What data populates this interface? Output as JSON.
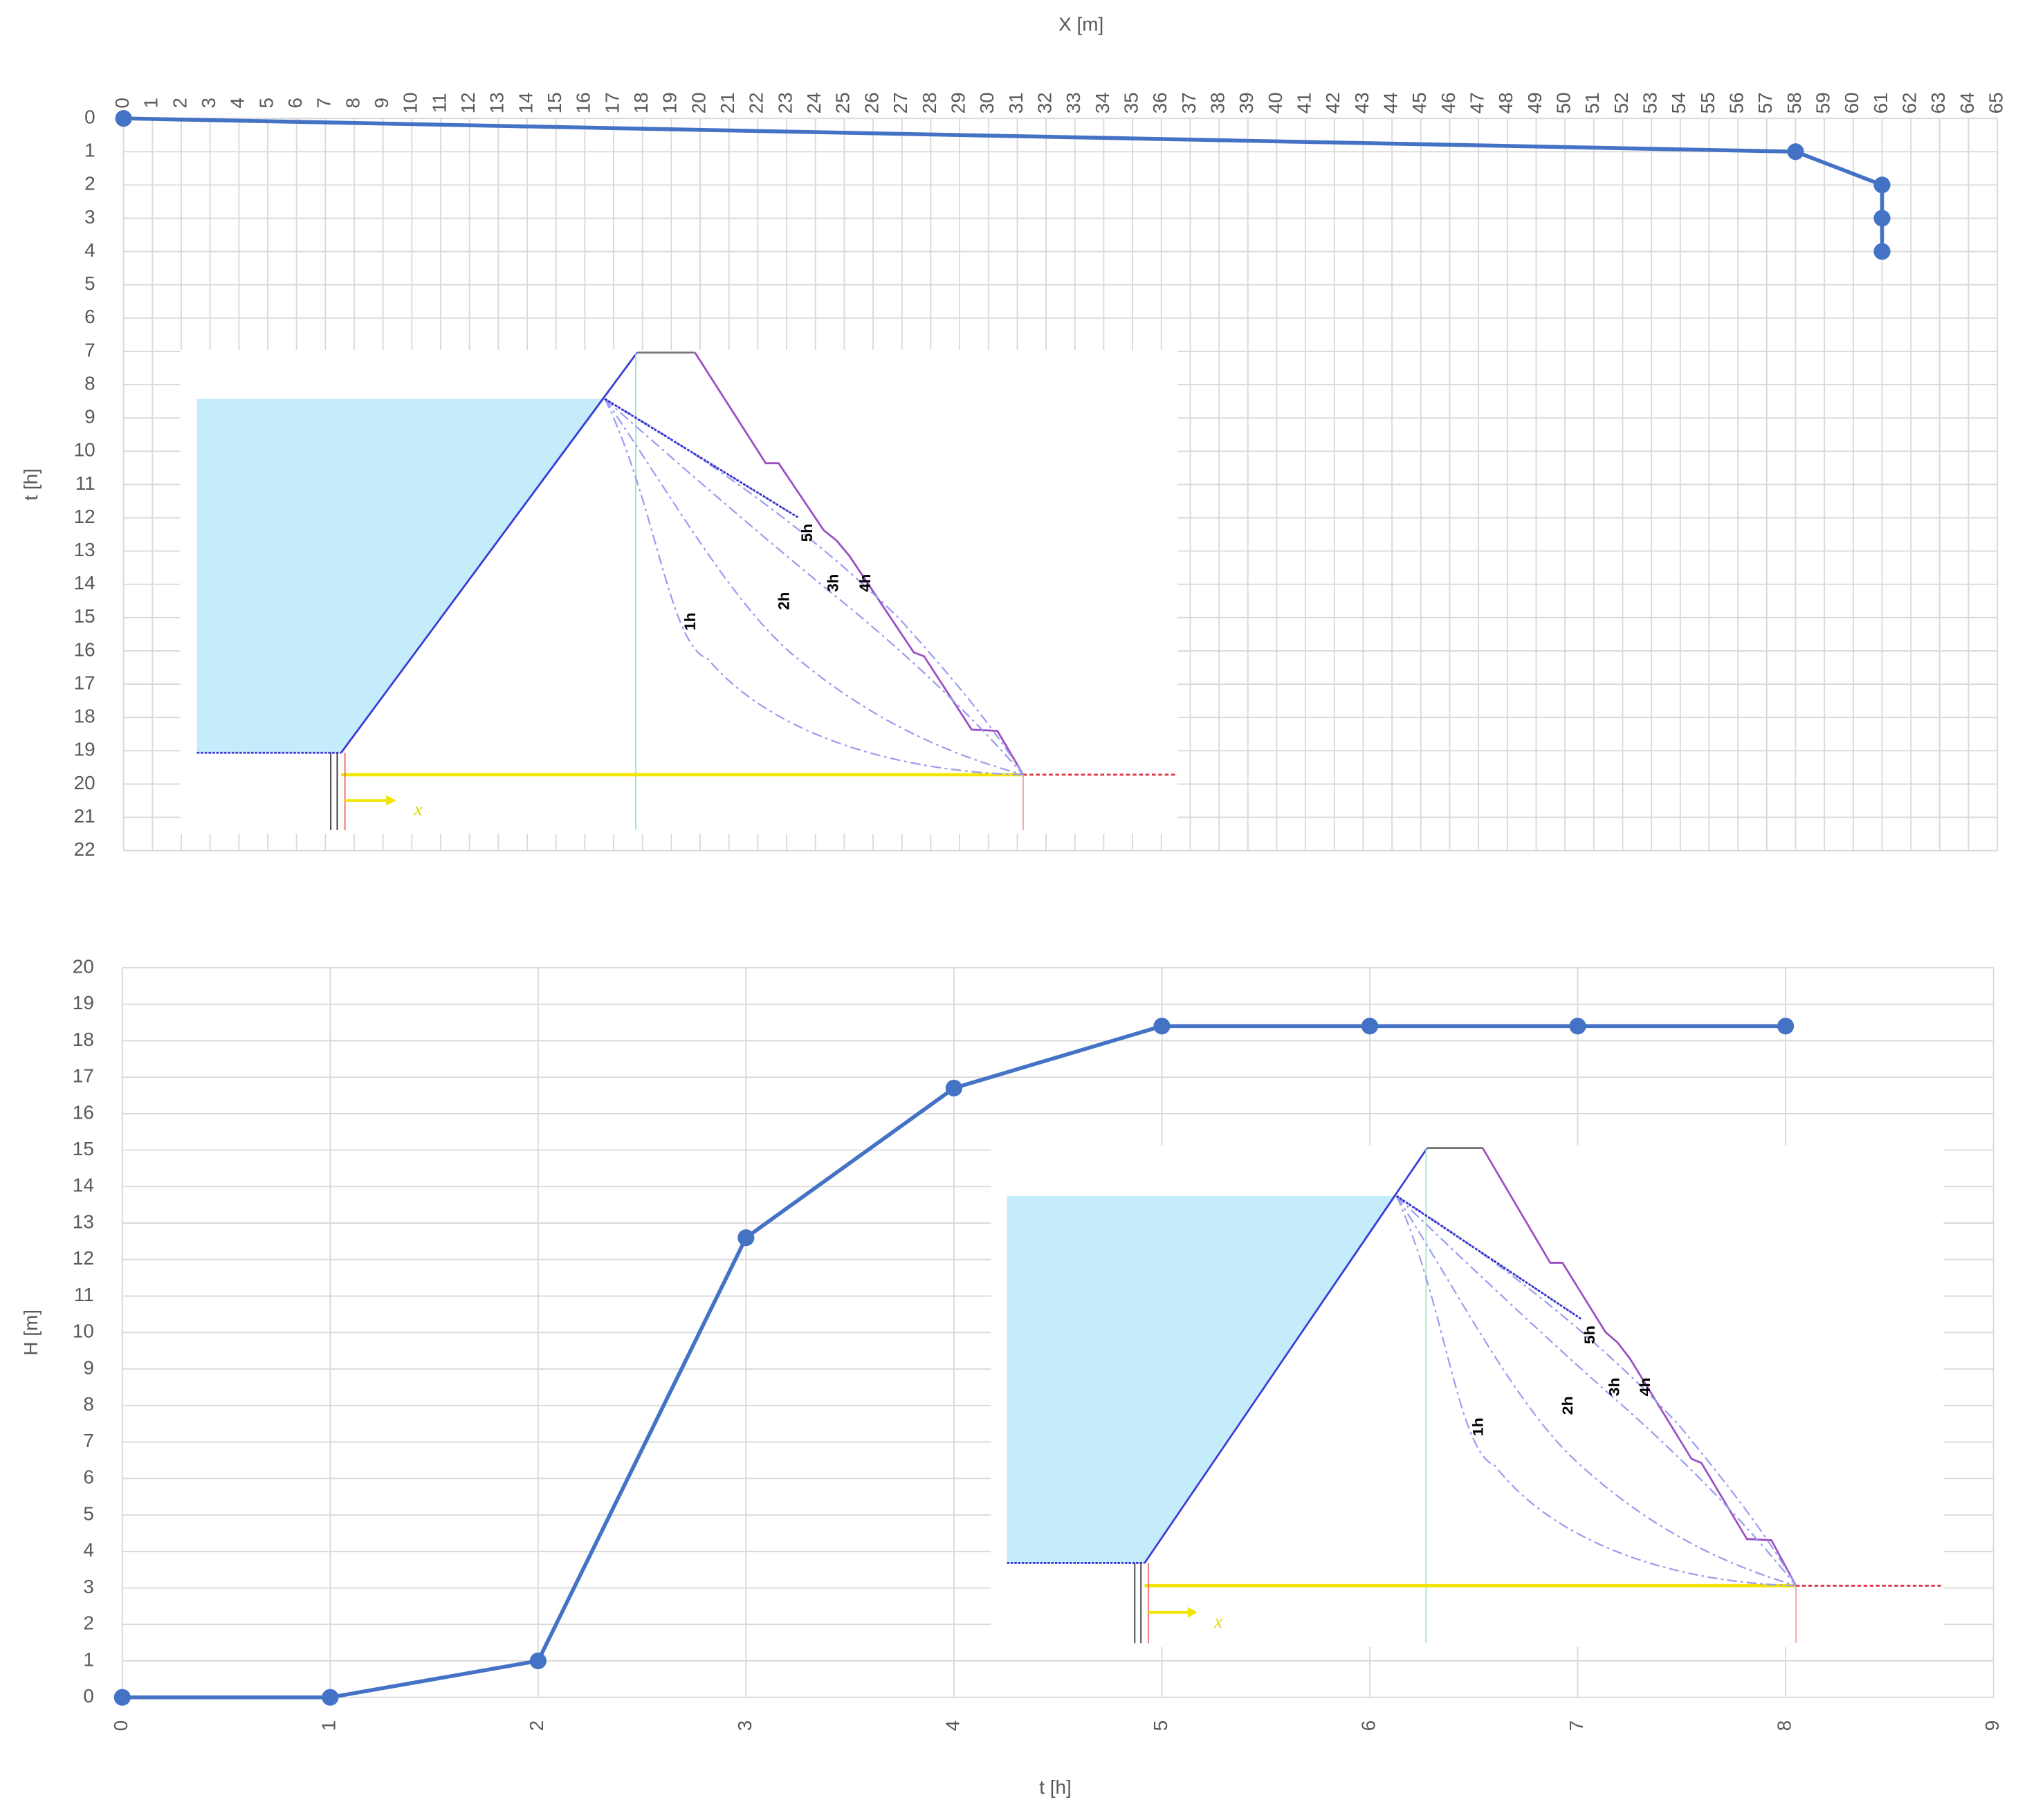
{
  "chart_data": [
    {
      "type": "line",
      "x_label": "X [m]",
      "y_label": "t [h]",
      "x_axis_position": "top",
      "y_inverted": true,
      "x": [
        0,
        58,
        61,
        61,
        61
      ],
      "values": [
        0,
        1,
        2,
        3,
        4
      ],
      "color": "#4472c4",
      "xlim": [
        0,
        65
      ],
      "xticks": [
        0,
        1,
        2,
        3,
        4,
        5,
        6,
        7,
        8,
        9,
        10,
        11,
        12,
        13,
        14,
        15,
        16,
        17,
        18,
        19,
        20,
        21,
        22,
        23,
        24,
        25,
        26,
        27,
        28,
        29,
        30,
        31,
        32,
        33,
        34,
        35,
        36,
        37,
        38,
        39,
        40,
        41,
        42,
        43,
        44,
        45,
        46,
        47,
        48,
        49,
        50,
        51,
        52,
        53,
        54,
        55,
        56,
        57,
        58,
        59,
        60,
        61,
        62,
        63,
        64,
        65
      ],
      "ylim": [
        0,
        22
      ],
      "yticks": [
        0,
        1,
        2,
        3,
        4,
        5,
        6,
        7,
        8,
        9,
        10,
        11,
        12,
        13,
        14,
        15,
        16,
        17,
        18,
        19,
        20,
        21,
        22
      ],
      "grid": true,
      "annotations": [
        "1h",
        "2h",
        "3h",
        "4h",
        "5h",
        "x"
      ]
    },
    {
      "type": "line",
      "x_label": "t [h]",
      "y_label": "H [m]",
      "x_axis_position": "bottom",
      "y_inverted": false,
      "x": [
        0,
        1,
        2,
        3,
        4,
        5,
        6,
        7,
        8
      ],
      "values": [
        0,
        0,
        1,
        12.6,
        16.7,
        18.4,
        18.4,
        18.4,
        18.4
      ],
      "color": "#4472c4",
      "xlim": [
        0,
        9
      ],
      "xticks": [
        0,
        1,
        2,
        3,
        4,
        5,
        6,
        7,
        8,
        9
      ],
      "ylim": [
        0,
        20
      ],
      "yticks": [
        0,
        1,
        2,
        3,
        4,
        5,
        6,
        7,
        8,
        9,
        10,
        11,
        12,
        13,
        14,
        15,
        16,
        17,
        18,
        19,
        20
      ],
      "grid": true,
      "annotations": [
        "1h",
        "2h",
        "3h",
        "4h",
        "5h",
        "x"
      ]
    }
  ]
}
